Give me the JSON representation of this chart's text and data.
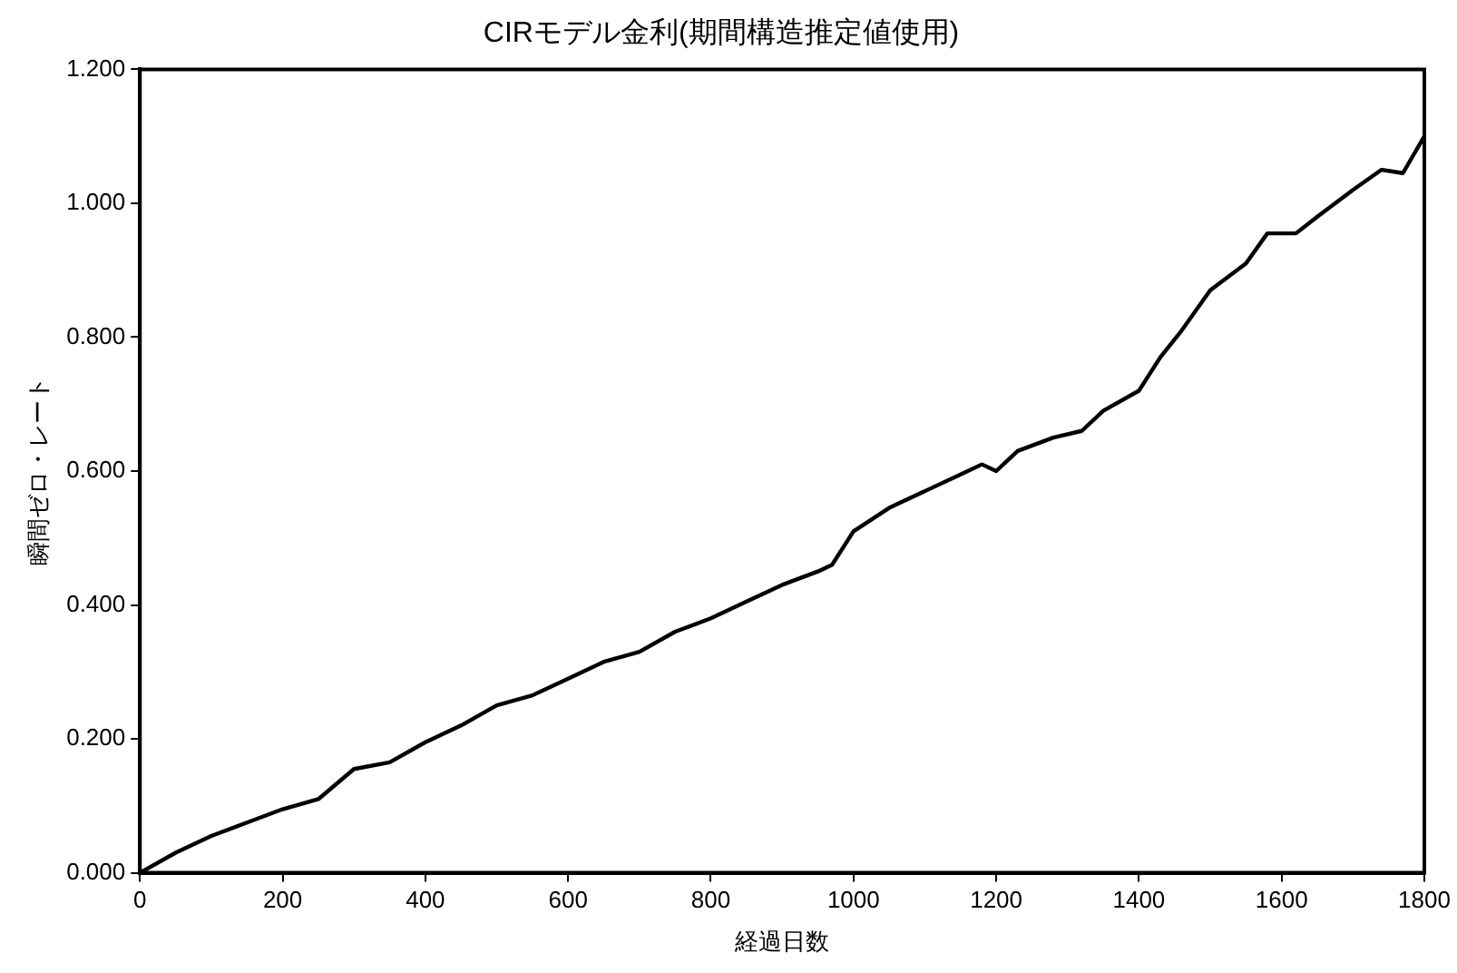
{
  "chart_data": {
    "type": "line",
    "title": "CIRモデル金利(期間構造推定値使用)",
    "xlabel": "経過日数",
    "ylabel": "瞬間ゼロ・レート",
    "x": [
      0,
      50,
      100,
      150,
      200,
      250,
      300,
      350,
      400,
      450,
      500,
      550,
      600,
      650,
      700,
      750,
      800,
      850,
      900,
      950,
      970,
      1000,
      1050,
      1100,
      1150,
      1180,
      1200,
      1230,
      1280,
      1320,
      1350,
      1400,
      1430,
      1460,
      1500,
      1550,
      1580,
      1620,
      1650,
      1700,
      1740,
      1770,
      1800
    ],
    "series": [
      {
        "color": "#000000",
        "values": [
          0,
          0.03,
          0.055,
          0.075,
          0.095,
          0.11,
          0.155,
          0.165,
          0.195,
          0.22,
          0.25,
          0.265,
          0.29,
          0.315,
          0.33,
          0.36,
          0.38,
          0.405,
          0.43,
          0.45,
          0.46,
          0.51,
          0.545,
          0.57,
          0.595,
          0.61,
          0.6,
          0.63,
          0.65,
          0.66,
          0.69,
          0.72,
          0.77,
          0.81,
          0.87,
          0.91,
          0.955,
          0.955,
          0.98,
          1.02,
          1.05,
          1.045,
          1.1
        ]
      }
    ],
    "xlim": [
      0,
      1800
    ],
    "xticks": [
      0,
      200,
      400,
      600,
      800,
      1000,
      1200,
      1400,
      1600,
      1800
    ],
    "ylim": [
      0,
      1.2
    ],
    "yticks": [
      {
        "value": 0,
        "label": "0.000"
      },
      {
        "value": 0.2,
        "label": "0.200"
      },
      {
        "value": 0.4,
        "label": "0.400"
      },
      {
        "value": 0.6,
        "label": "0.600"
      },
      {
        "value": 0.8,
        "label": "0.800"
      },
      {
        "value": 1,
        "label": "1.000"
      },
      {
        "value": 1.2,
        "label": "1.200"
      }
    ],
    "grid": false,
    "legend": false,
    "marker": "none",
    "line_style": "solid"
  }
}
